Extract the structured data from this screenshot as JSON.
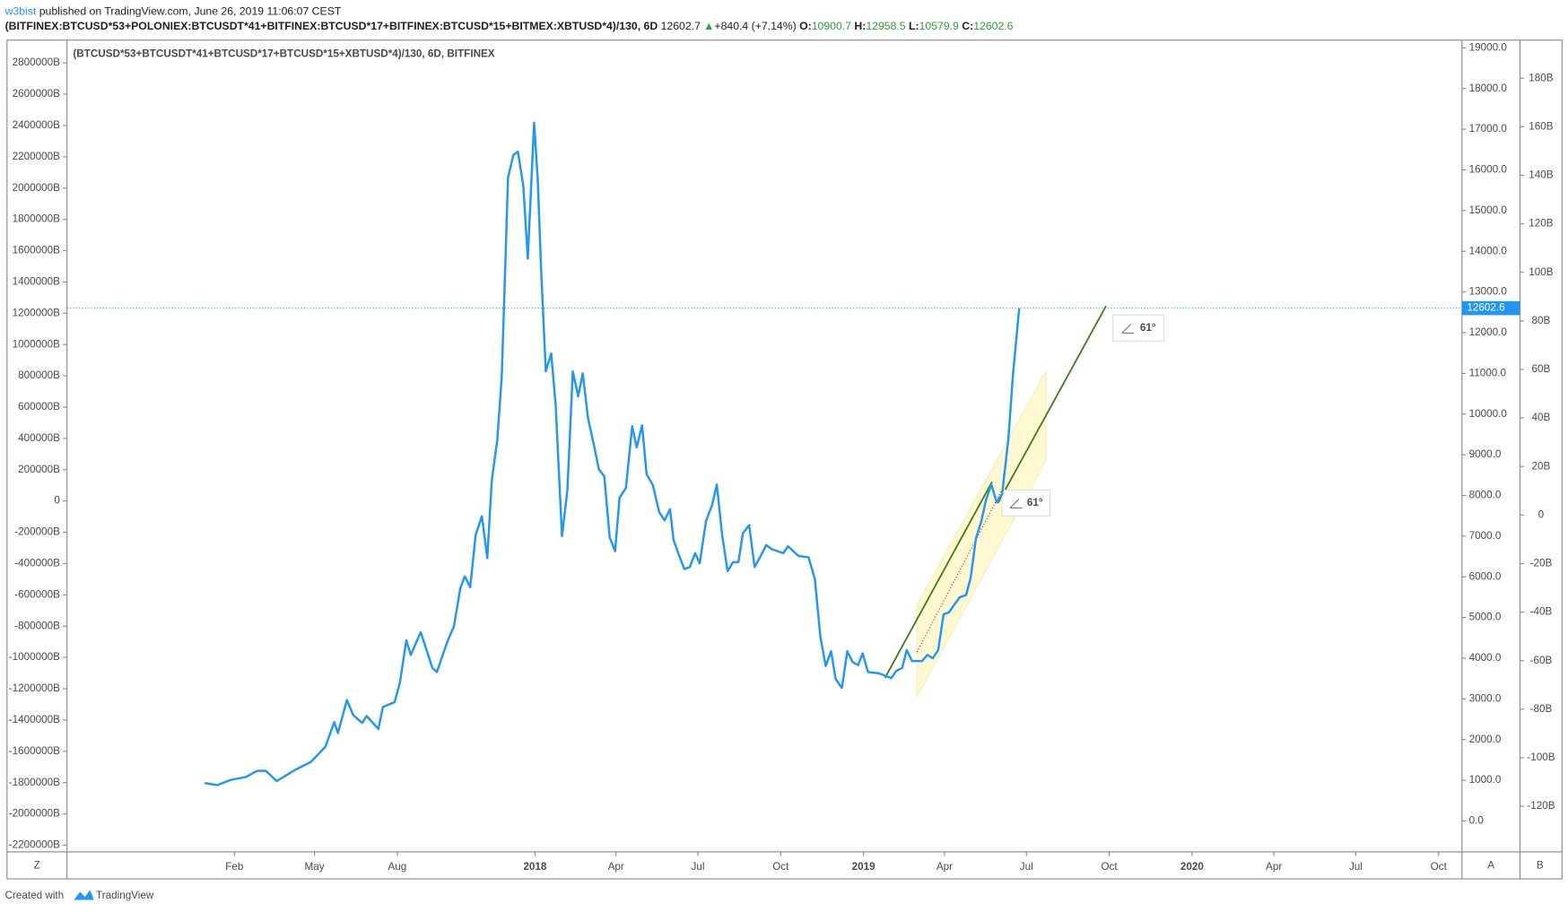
{
  "header": {
    "author": "w3bist",
    "published": "published on TradingView.com, June 26, 2019 11:06:07 CEST"
  },
  "symbol": {
    "name": "(BITFINEX:BTCUSD*53+POLONIEX:BTCUSDT*41+BITFINEX:BTCUSD*17+BITFINEX:BTCUSD*15+BITMEX:XBTUSD*4)/130, 6D",
    "last": 12602.7,
    "arrow": "▲",
    "change": "+840.4 (+7.14%)",
    "o_label": "O:",
    "o": 10900.7,
    "h_label": "H:",
    "h": 12958.5,
    "l_label": "L:",
    "l": 10579.9,
    "c_label": "C:",
    "c": 12602.6
  },
  "chart_data": {
    "type": "line",
    "title": "(BTCUSD*53+BTCUSDT*41+BTCUSD*17+BTCUSD*15+XBTUSD*4)/130, 6D, BITFINEX",
    "color": "#2196f3",
    "x": [
      "2016-12-30",
      "2017-01-13",
      "2017-01-28",
      "2017-02-14",
      "2017-02-26",
      "2017-03-08",
      "2017-03-20",
      "2017-04-09",
      "2017-04-27",
      "2017-05-13",
      "2017-05-23",
      "2017-05-27",
      "2017-06-06",
      "2017-06-13",
      "2017-06-23",
      "2017-06-28",
      "2017-07-11",
      "2017-07-16",
      "2017-07-29",
      "2017-08-04",
      "2017-08-11",
      "2017-08-16",
      "2017-08-27",
      "2017-09-09",
      "2017-09-14",
      "2017-09-25",
      "2017-10-03",
      "2017-10-10",
      "2017-10-15",
      "2017-10-21",
      "2017-10-27",
      "2017-11-03",
      "2017-11-09",
      "2017-11-14",
      "2017-11-20",
      "2017-11-25",
      "2017-11-29",
      "2017-12-02",
      "2017-12-08",
      "2017-12-13",
      "2017-12-19",
      "2017-12-24",
      "2017-12-31",
      "2018-01-04",
      "2018-01-08",
      "2018-01-13",
      "2018-01-19",
      "2018-01-24",
      "2018-01-31",
      "2018-02-06",
      "2018-02-12",
      "2018-02-18",
      "2018-02-23",
      "2018-03-01",
      "2018-03-08",
      "2018-03-13",
      "2018-03-19",
      "2018-03-25",
      "2018-03-31",
      "2018-04-05",
      "2018-04-12",
      "2018-04-19",
      "2018-04-24",
      "2018-04-30",
      "2018-05-05",
      "2018-05-12",
      "2018-05-19",
      "2018-05-25",
      "2018-05-31",
      "2018-06-04",
      "2018-06-10",
      "2018-06-16",
      "2018-06-22",
      "2018-06-28",
      "2018-07-03",
      "2018-07-10",
      "2018-07-17",
      "2018-07-22",
      "2018-07-28",
      "2018-08-03",
      "2018-08-09",
      "2018-08-15",
      "2018-08-20",
      "2018-08-27",
      "2018-09-02",
      "2018-09-08",
      "2018-09-15",
      "2018-09-21",
      "2018-10-04",
      "2018-10-09",
      "2018-10-21",
      "2018-11-01",
      "2018-11-08",
      "2018-11-14",
      "2018-11-20",
      "2018-11-26",
      "2018-12-01",
      "2018-12-08",
      "2018-12-14",
      "2018-12-20",
      "2018-12-26",
      "2018-12-31",
      "2019-01-06",
      "2019-01-18",
      "2019-02-01",
      "2019-02-06",
      "2019-02-13",
      "2019-02-18",
      "2019-02-24",
      "2019-03-07",
      "2019-03-13",
      "2019-03-19",
      "2019-03-25",
      "2019-03-31",
      "2019-04-06",
      "2019-04-13",
      "2019-04-18",
      "2019-04-25",
      "2019-04-30",
      "2019-05-06",
      "2019-05-12",
      "2019-05-17",
      "2019-05-23",
      "2019-05-29",
      "2019-06-04",
      "2019-06-11",
      "2019-06-16",
      "2019-06-23"
    ],
    "values": [
      930,
      880,
      1010,
      1080,
      1230,
      1230,
      980,
      1250,
      1450,
      1820,
      2430,
      2160,
      2970,
      2600,
      2410,
      2580,
      2260,
      2800,
      2920,
      3410,
      4440,
      4080,
      4640,
      3760,
      3660,
      4370,
      4790,
      5720,
      6010,
      5740,
      7020,
      7490,
      6460,
      8370,
      9350,
      10900,
      13650,
      15810,
      16370,
      16450,
      15610,
      13820,
      17160,
      15790,
      13450,
      11050,
      11490,
      10210,
      7000,
      8130,
      11050,
      10430,
      11000,
      9890,
      9180,
      8640,
      8470,
      6970,
      6630,
      7950,
      8180,
      9700,
      9180,
      9720,
      8520,
      8250,
      7590,
      7390,
      7660,
      6900,
      6530,
      6190,
      6240,
      6580,
      6330,
      7370,
      7780,
      8270,
      7020,
      6140,
      6360,
      6360,
      7070,
      7270,
      6240,
      6480,
      6780,
      6680,
      6580,
      6750,
      6510,
      6480,
      5940,
      4540,
      3810,
      4170,
      3490,
      3270,
      4170,
      3900,
      3830,
      4120,
      3660,
      3630,
      3510,
      3680,
      3760,
      4200,
      3930,
      3930,
      4080,
      4000,
      4200,
      5080,
      5130,
      5350,
      5500,
      5550,
      5970,
      6950,
      7370,
      7880,
      8270,
      7830,
      8030,
      9400,
      10950,
      12600
    ],
    "xlim": [
      "2016-07-30",
      "2020-10-27"
    ],
    "xticks": [
      {
        "value": "2017-02-01",
        "label": "Feb"
      },
      {
        "value": "2017-05-01",
        "label": "May"
      },
      {
        "value": "2017-08-01",
        "label": "Aug"
      },
      {
        "value": "2018-01-01",
        "label": "2018"
      },
      {
        "value": "2018-04-01",
        "label": "Apr"
      },
      {
        "value": "2018-07-01",
        "label": "Jul"
      },
      {
        "value": "2018-10-01",
        "label": "Oct"
      },
      {
        "value": "2019-01-01",
        "label": "2019"
      },
      {
        "value": "2019-04-01",
        "label": "Apr"
      },
      {
        "value": "2019-07-01",
        "label": "Jul"
      },
      {
        "value": "2019-10-01",
        "label": "Oct"
      },
      {
        "value": "2020-01-01",
        "label": "2020"
      },
      {
        "value": "2020-04-01",
        "label": "Apr"
      },
      {
        "value": "2020-07-01",
        "label": "Jul"
      },
      {
        "value": "2020-10-01",
        "label": "Oct"
      }
    ],
    "ylim": [
      -760,
      19190
    ],
    "yticks": [
      {
        "value": 19000,
        "label": "19000.0"
      },
      {
        "value": 18000,
        "label": "18000.0"
      },
      {
        "value": 17000,
        "label": "17000.0"
      },
      {
        "value": 16000,
        "label": "16000.0"
      },
      {
        "value": 15000,
        "label": "15000.0"
      },
      {
        "value": 14000,
        "label": "14000.0"
      },
      {
        "value": 13000,
        "label": "13000.0"
      },
      {
        "value": 12000,
        "label": "12000.0"
      },
      {
        "value": 11000,
        "label": "11000.0"
      },
      {
        "value": 10000,
        "label": "10000.0"
      },
      {
        "value": 9000,
        "label": "9000.0"
      },
      {
        "value": 8000,
        "label": "8000.0"
      },
      {
        "value": 7000,
        "label": "7000.0"
      },
      {
        "value": 6000,
        "label": "6000.0"
      },
      {
        "value": 5000,
        "label": "5000.0"
      },
      {
        "value": 4000,
        "label": "4000.0"
      },
      {
        "value": 3000,
        "label": "3000.0"
      },
      {
        "value": 2000,
        "label": "2000.0"
      },
      {
        "value": 1000,
        "label": "1000.0"
      },
      {
        "value": 0,
        "label": "0.0"
      }
    ],
    "y2lim": [
      -138.8,
      195.7
    ],
    "y2ticks": [
      {
        "value": 180,
        "label": "180B"
      },
      {
        "value": 160,
        "label": "160B"
      },
      {
        "value": 140,
        "label": "140B"
      },
      {
        "value": 120,
        "label": "120B"
      },
      {
        "value": 100,
        "label": "100B"
      },
      {
        "value": 80,
        "label": "80B"
      },
      {
        "value": 60,
        "label": "60B"
      },
      {
        "value": 40,
        "label": "40B"
      },
      {
        "value": 20,
        "label": "20B"
      },
      0,
      {
        "value": -20,
        "label": "-20B"
      },
      {
        "value": -40,
        "label": "-40B"
      },
      {
        "value": -60,
        "label": "-60B"
      },
      {
        "value": -80,
        "label": "-80B"
      },
      {
        "value": -100,
        "label": "-100B"
      },
      {
        "value": -120,
        "label": "-120B"
      }
    ],
    "y3lim": [
      -2242800,
      2945700
    ],
    "y3ticks": [
      {
        "value": 2800000,
        "label": "2800000B"
      },
      {
        "value": 2600000,
        "label": "2600000B"
      },
      {
        "value": 2400000,
        "label": "2400000B"
      },
      {
        "value": 2200000,
        "label": "2200000B"
      },
      {
        "value": 2000000,
        "label": "2000000B"
      },
      {
        "value": 1800000,
        "label": "1800000B"
      },
      {
        "value": 1600000,
        "label": "1600000B"
      },
      {
        "value": 1400000,
        "label": "1400000B"
      },
      {
        "value": 1200000,
        "label": "1200000B"
      },
      {
        "value": 1000000,
        "label": "1000000B"
      },
      {
        "value": 800000,
        "label": "800000B"
      },
      {
        "value": 600000,
        "label": "600000B"
      },
      {
        "value": 400000,
        "label": "400000B"
      },
      {
        "value": 200000,
        "label": "200000B"
      },
      0,
      {
        "value": -200000,
        "label": "-200000B"
      },
      {
        "value": -400000,
        "label": "-400000B"
      },
      {
        "value": -600000,
        "label": "-600000B"
      },
      {
        "value": -800000,
        "label": "-800000B"
      },
      {
        "value": -1000000,
        "label": "-1000000B"
      },
      {
        "value": -1200000,
        "label": "-1200000B"
      },
      {
        "value": -1400000,
        "label": "-1400000B"
      },
      {
        "value": -1600000,
        "label": "-1600000B"
      },
      {
        "value": -1800000,
        "label": "-1800000B"
      },
      {
        "value": -2000000,
        "label": "-2000000B"
      },
      {
        "value": -2200000,
        "label": "-2200000B"
      }
    ],
    "last_price": 12602.6,
    "annotations": [
      "61°",
      "61°"
    ]
  },
  "buttons": {
    "z": "Z",
    "a": "A",
    "b": "B"
  },
  "footer": {
    "created": "Created with",
    "brand": "TradingView"
  }
}
